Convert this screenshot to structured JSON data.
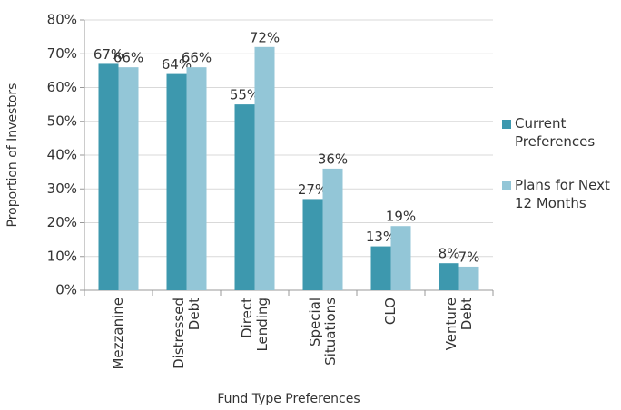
{
  "chart_data": {
    "type": "bar",
    "x_label": "Fund Type Preferences",
    "y_label": "Proportion of Investors",
    "categories": [
      "Mezzanine",
      "Distressed Debt",
      "Direct Lending",
      "Special Situations",
      "CLO",
      "Venture Debt"
    ],
    "series": [
      {
        "name": "Current Preferences",
        "color": "#3d98ae",
        "values": [
          67,
          64,
          55,
          27,
          13,
          8
        ],
        "value_labels": [
          "67%",
          "64%",
          "55%",
          "27%",
          "13%",
          "8%"
        ]
      },
      {
        "name": "Plans for Next 12 Months",
        "color": "#93c6d7",
        "values": [
          66,
          66,
          72,
          36,
          19,
          7
        ],
        "value_labels": [
          "66%",
          "66%",
          "72%",
          "36%",
          "19%",
          "7%"
        ]
      }
    ],
    "ylim": [
      0,
      80
    ],
    "yticks": [
      {
        "value": 0,
        "label": "0%"
      },
      {
        "value": 10,
        "label": "10%"
      },
      {
        "value": 20,
        "label": "20%"
      },
      {
        "value": 30,
        "label": "30%"
      },
      {
        "value": 40,
        "label": "40%"
      },
      {
        "value": 50,
        "label": "50%"
      },
      {
        "value": 60,
        "label": "60%"
      },
      {
        "value": 70,
        "label": "70%"
      },
      {
        "value": 80,
        "label": "80%"
      }
    ],
    "grid": true,
    "legend": "right"
  }
}
